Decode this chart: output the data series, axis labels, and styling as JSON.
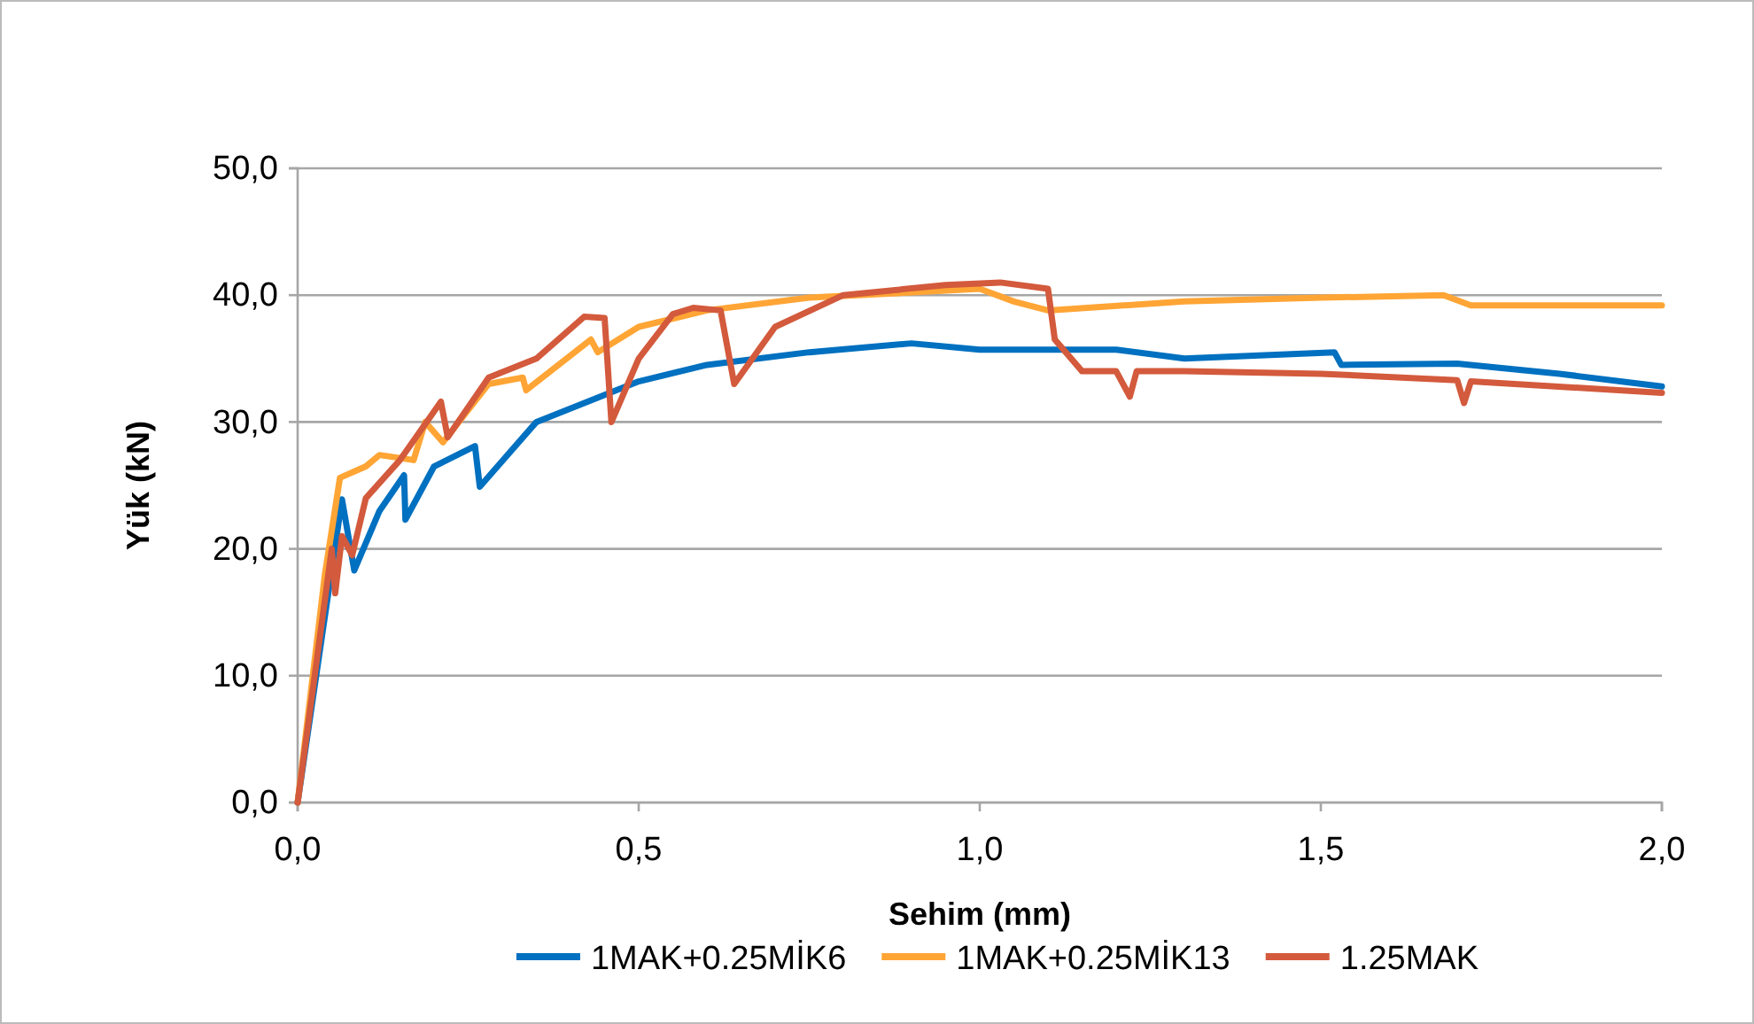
{
  "chart_data": {
    "type": "line",
    "xlabel": "Sehim (mm)",
    "ylabel": "Yük (kN)",
    "xlim": [
      0,
      2
    ],
    "ylim": [
      0,
      50
    ],
    "xticks": [
      {
        "value": 0,
        "label": "0,0"
      },
      {
        "value": 0.5,
        "label": "0,5"
      },
      {
        "value": 1,
        "label": "1,0"
      },
      {
        "value": 1.5,
        "label": "1,5"
      },
      {
        "value": 2,
        "label": "2,0"
      }
    ],
    "yticks": [
      {
        "value": 0,
        "label": "0,0"
      },
      {
        "value": 10,
        "label": "10,0"
      },
      {
        "value": 20,
        "label": "20,0"
      },
      {
        "value": 30,
        "label": "30,0"
      },
      {
        "value": 40,
        "label": "40,0"
      },
      {
        "value": 50,
        "label": "50,0"
      }
    ],
    "grid": "y",
    "legend": "bottom",
    "marker": "none",
    "line_style": "solid",
    "series": [
      {
        "name": "1MAK+0.25MİK6",
        "color": "#0070c0",
        "x": [
          0,
          0.039,
          0.065,
          0.083,
          0.12,
          0.156,
          0.158,
          0.2,
          0.26,
          0.267,
          0.35,
          0.5,
          0.6,
          0.75,
          0.9,
          1.0,
          1.2,
          1.3,
          1.52,
          1.53,
          1.7,
          1.85,
          2.0
        ],
        "values": [
          0,
          null,
          23.9,
          18.3,
          23,
          25.8,
          22.3,
          26.5,
          28.1,
          24.9,
          30,
          33.2,
          34.5,
          35.5,
          36.2,
          35.7,
          35.7,
          35,
          35.5,
          34.5,
          34.6,
          33.8,
          32.8
        ]
      },
      {
        "name": "1MAK+0.25MİK13",
        "color": "#ffa535",
        "x": [
          0,
          0.04,
          0.062,
          0.1,
          0.12,
          0.17,
          0.187,
          0.213,
          0.28,
          0.33,
          0.335,
          0.43,
          0.44,
          0.5,
          0.6,
          0.75,
          1.0,
          1.05,
          1.1,
          1.3,
          1.5,
          1.68,
          1.72,
          2.0
        ],
        "values": [
          0,
          18,
          25.6,
          26.5,
          27.4,
          27,
          30,
          28.4,
          33,
          33.5,
          32.5,
          36.5,
          35.5,
          37.5,
          38.8,
          39.8,
          40.5,
          39.5,
          38.8,
          39.5,
          39.8,
          40,
          39.2,
          39.2
        ]
      },
      {
        "name": "1.25MAK",
        "color": "#d35a3c",
        "x": [
          0,
          0.05,
          0.055,
          0.065,
          0.08,
          0.1,
          0.15,
          0.21,
          0.22,
          0.28,
          0.35,
          0.42,
          0.45,
          0.46,
          0.5,
          0.55,
          0.58,
          0.62,
          0.64,
          0.7,
          0.8,
          0.95,
          1.03,
          1.1,
          1.11,
          1.15,
          1.2,
          1.22,
          1.23,
          1.3,
          1.5,
          1.7,
          1.71,
          1.72,
          2.0
        ],
        "values": [
          0,
          20,
          16.5,
          21,
          19.5,
          24,
          27,
          31.6,
          28.8,
          33.5,
          35,
          38.3,
          38.2,
          30,
          35,
          38.5,
          39,
          38.8,
          33,
          37.5,
          40,
          40.8,
          41,
          40.5,
          36.5,
          34,
          34,
          32,
          34,
          34,
          33.8,
          33.3,
          31.5,
          33.2,
          32.3
        ]
      }
    ]
  }
}
